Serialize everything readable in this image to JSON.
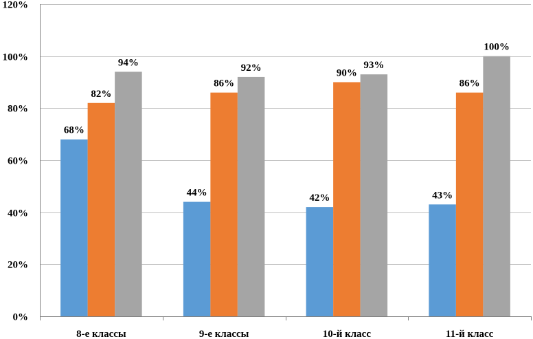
{
  "chart_data": {
    "type": "bar",
    "categories": [
      "8-е классы",
      "9-е классы",
      "10-й класс",
      "11-й класс"
    ],
    "series": [
      {
        "values": [
          68,
          44,
          42,
          43
        ],
        "color": "#5B9BD5"
      },
      {
        "values": [
          82,
          86,
          90,
          86
        ],
        "color": "#ED7D31"
      },
      {
        "values": [
          94,
          92,
          93,
          100
        ],
        "color": "#A5A5A5"
      }
    ],
    "data_labels": [
      [
        "68%",
        "44%",
        "42%",
        "43%"
      ],
      [
        "82%",
        "86%",
        "90%",
        "86%"
      ],
      [
        "94%",
        "92%",
        "93%",
        "100%"
      ]
    ],
    "ylim": [
      0,
      120
    ],
    "yticks": [
      0,
      20,
      40,
      60,
      80,
      100,
      120
    ],
    "ytick_labels": [
      "0%",
      "20%",
      "40%",
      "60%",
      "80%",
      "100%",
      "120%"
    ],
    "grid": true,
    "legend": "none",
    "title": "",
    "xlabel": "",
    "ylabel": ""
  }
}
